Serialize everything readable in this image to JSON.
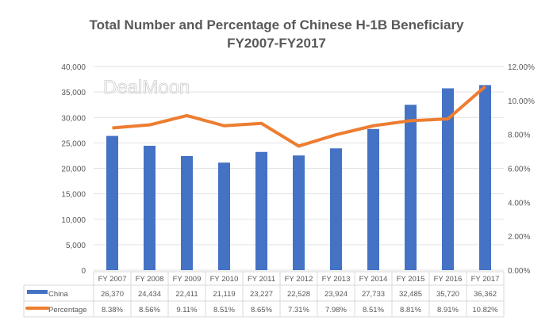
{
  "chart_data": {
    "type": "bar+line",
    "title": "Total Number and Percentage of Chinese H-1B Beneficiary",
    "subtitle": "FY2007-FY2017",
    "categories": [
      "FY 2007",
      "FY 2008",
      "FY 2009",
      "FY 2010",
      "FY 2011",
      "FY 2012",
      "FY 2013",
      "FY 2014",
      "FY 2015",
      "FY 2016",
      "FY 2017"
    ],
    "series": [
      {
        "name": "China",
        "type": "bar",
        "axis": "left",
        "color": "#4472C4",
        "values": [
          26370,
          24434,
          22411,
          21119,
          23227,
          22528,
          23924,
          27733,
          32485,
          35720,
          36362
        ],
        "labels": [
          "26,370",
          "24,434",
          "22,411",
          "21,119",
          "23,227",
          "22,528",
          "23,924",
          "27,733",
          "32,485",
          "35,720",
          "36,362"
        ]
      },
      {
        "name": "Percentage",
        "type": "line",
        "axis": "right",
        "color": "#ED7D31",
        "values": [
          8.38,
          8.56,
          9.11,
          8.51,
          8.65,
          7.31,
          7.98,
          8.51,
          8.81,
          8.91,
          10.82
        ],
        "labels": [
          "8.38%",
          "8.56%",
          "9.11%",
          "8.51%",
          "8.65%",
          "7.31%",
          "7.98%",
          "8.51%",
          "8.81%",
          "8.91%",
          "10.82%"
        ]
      }
    ],
    "ylim": [
      0,
      40000
    ],
    "yticks": [
      "0",
      "5,000",
      "10,000",
      "15,000",
      "20,000",
      "25,000",
      "30,000",
      "35,000",
      "40,000"
    ],
    "y2lim": [
      0,
      12
    ],
    "y2ticks": [
      "0.00%",
      "2.00%",
      "4.00%",
      "6.00%",
      "8.00%",
      "10.00%",
      "12.00%"
    ],
    "grid": true,
    "legend": "data-table"
  },
  "watermark": "DealMoon"
}
